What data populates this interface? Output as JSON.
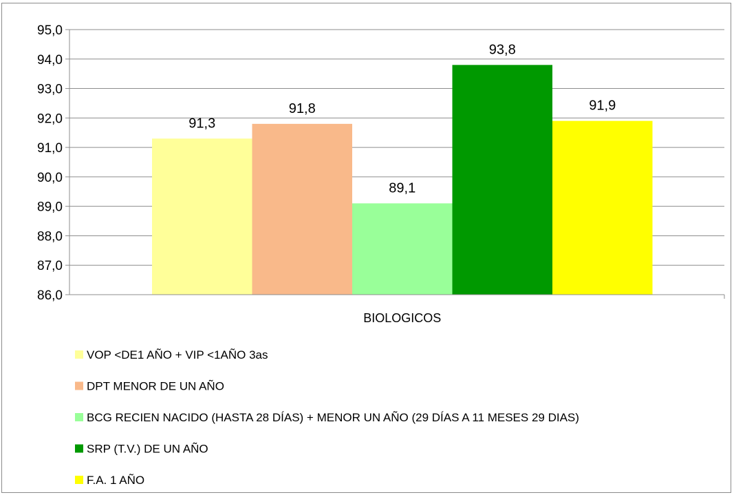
{
  "chart_data": {
    "type": "bar",
    "categories": [
      "BIOLOGICOS"
    ],
    "ylim": [
      86,
      95
    ],
    "ytick_step": 1,
    "ytick_labels": [
      "86,0",
      "87,0",
      "88,0",
      "89,0",
      "90,0",
      "91,0",
      "92,0",
      "93,0",
      "94,0",
      "95,0"
    ],
    "grid": true,
    "legend_position": "bottom-left",
    "series": [
      {
        "name": "VOP <DE1 AÑO + VIP <1AÑO 3as",
        "value": 91.3,
        "label": "91,3",
        "color": "#FFFF99"
      },
      {
        "name": "DPT MENOR DE UN AÑO",
        "value": 91.8,
        "label": "91,8",
        "color": "#F9B98A"
      },
      {
        "name": "BCG RECIEN NACIDO (HASTA 28 DÍAS) + MENOR UN AÑO (29 DÍAS A 11 MESES 29 DIAS)",
        "value": 89.1,
        "label": "89,1",
        "color": "#99FF99"
      },
      {
        "name": "SRP (T.V.) DE UN AÑO",
        "value": 93.8,
        "label": "93,8",
        "color": "#009900"
      },
      {
        "name": "F.A. 1 AÑO",
        "value": 91.9,
        "label": "91,9",
        "color": "#FFFF00"
      }
    ]
  }
}
